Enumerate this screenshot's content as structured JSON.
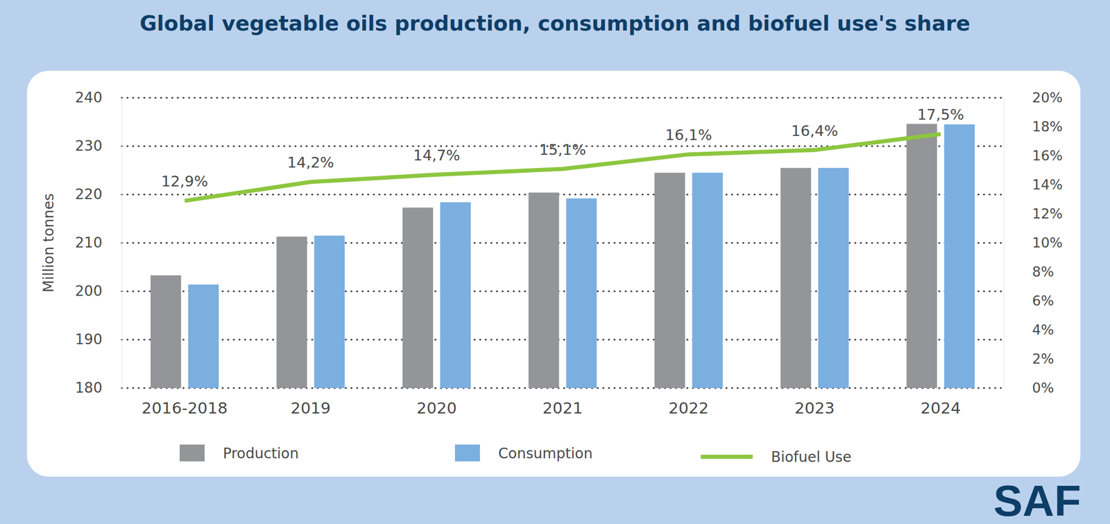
{
  "chart_data": {
    "type": "bar",
    "title": "Global vegetable oils production, consumption and biofuel use's share",
    "y_label": "Million tonnes",
    "annotations": [
      "SAF"
    ],
    "categories": [
      "2016-2018",
      "2019",
      "2020",
      "2021",
      "2022",
      "2023",
      "2024"
    ],
    "series": [
      {
        "name": "Production",
        "type": "bar",
        "color": "#939598",
        "values": [
          203.3,
          211.3,
          217.3,
          220.4,
          224.5,
          225.5,
          234.6
        ]
      },
      {
        "name": "Consumption",
        "type": "bar",
        "color": "#7aafe0",
        "values": [
          201.4,
          211.5,
          218.4,
          219.2,
          224.5,
          225.5,
          234.5
        ]
      },
      {
        "name": "Biofuel Use",
        "type": "line",
        "axis": "y2",
        "color": "#8dc63f",
        "data_labels": true,
        "values": [
          12.9,
          14.2,
          14.7,
          15.1,
          16.1,
          16.4,
          17.5
        ],
        "value_labels": [
          "12,9%",
          "14,2%",
          "14,7%",
          "15,1%",
          "16,1%",
          "16,4%",
          "17,5%"
        ]
      }
    ],
    "ylim": [
      180,
      240
    ],
    "yticks": [
      180,
      190,
      200,
      210,
      220,
      230,
      240
    ],
    "y2lim": [
      0,
      20
    ],
    "y2ticks": [
      {
        "value": 0,
        "label": "0%"
      },
      {
        "value": 2,
        "label": "2%"
      },
      {
        "value": 4,
        "label": "4%"
      },
      {
        "value": 6,
        "label": "6%"
      },
      {
        "value": 8,
        "label": "8%"
      },
      {
        "value": 10,
        "label": "10%"
      },
      {
        "value": 12,
        "label": "12%"
      },
      {
        "value": 14,
        "label": "14%"
      },
      {
        "value": 16,
        "label": "16%"
      },
      {
        "value": 18,
        "label": "18%"
      },
      {
        "value": 20,
        "label": "20%"
      }
    ],
    "grid": true,
    "legend": "bottom"
  }
}
